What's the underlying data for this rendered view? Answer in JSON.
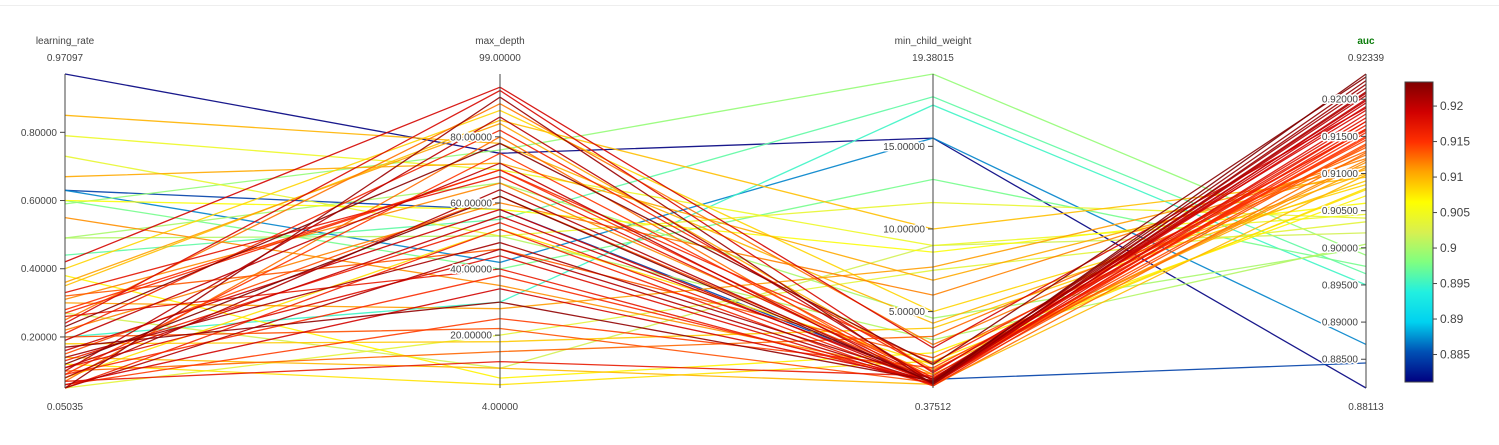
{
  "chart_data": {
    "type": "parallel_coordinates",
    "title": "",
    "color_by": "auc",
    "colorscale": [
      "#000080",
      "#0050b4",
      "#00d2f0",
      "#22f0e0",
      "#80ff80",
      "#d8f050",
      "#ffff00",
      "#ffa500",
      "#ff3000",
      "#d00000",
      "#800000"
    ],
    "dimensions": [
      {
        "name": "learning_rate",
        "min": 0.05035,
        "max": 0.97097,
        "range_min_label": "0.05035",
        "range_max_label": "0.97097",
        "ticks": [
          0.2,
          0.4,
          0.6,
          0.8
        ],
        "tick_labels": [
          "0.20000",
          "0.40000",
          "0.60000",
          "0.80000"
        ],
        "tick_side": "left",
        "highlight": false
      },
      {
        "name": "max_depth",
        "min": 4.0,
        "max": 99.0,
        "range_min_label": "4.00000",
        "range_max_label": "99.00000",
        "ticks": [
          20,
          40,
          60,
          80
        ],
        "tick_labels": [
          "20.00000",
          "40.00000",
          "60.00000",
          "80.00000"
        ],
        "tick_side": "left",
        "highlight": false
      },
      {
        "name": "min_child_weight",
        "min": 0.37512,
        "max": 19.38015,
        "range_min_label": "0.37512",
        "range_max_label": "19.38015",
        "ticks": [
          5,
          10,
          15
        ],
        "tick_labels": [
          "5.00000",
          "10.00000",
          "15.00000"
        ],
        "tick_side": "left",
        "highlight": false
      },
      {
        "name": "auc",
        "min": 0.88113,
        "max": 0.92339,
        "range_min_label": "0.88113",
        "range_max_label": "0.92339",
        "ticks": [
          0.885,
          0.89,
          0.895,
          0.9,
          0.905,
          0.91,
          0.915,
          0.92
        ],
        "tick_labels": [
          "0.88500",
          "0.89000",
          "0.89500",
          "0.90000",
          "0.90500",
          "0.91000",
          "0.91500",
          "0.92000"
        ],
        "tick_side": "left",
        "highlight": true
      }
    ],
    "trials": [
      [
        0.97097,
        75,
        15.5,
        0.88113
      ],
      [
        0.63,
        58,
        0.9,
        0.8845
      ],
      [
        0.63,
        42,
        15.5,
        0.887
      ],
      [
        0.2,
        30,
        17.5,
        0.895
      ],
      [
        0.6,
        40,
        13.0,
        0.8975
      ],
      [
        0.44,
        55,
        18.0,
        0.8965
      ],
      [
        0.59,
        76,
        19.38015,
        0.899
      ],
      [
        0.27,
        10,
        9.0,
        0.902
      ],
      [
        0.05035,
        20,
        7.5,
        0.9035
      ],
      [
        0.49,
        50,
        3.3,
        0.9005
      ],
      [
        0.49,
        66,
        4.6,
        0.9
      ],
      [
        0.73,
        50,
        11.6,
        0.904
      ],
      [
        0.79,
        70,
        9.0,
        0.9045
      ],
      [
        0.6,
        58,
        8.6,
        0.906
      ],
      [
        0.38,
        7,
        2.5,
        0.907
      ],
      [
        0.35,
        85,
        10.0,
        0.9095
      ],
      [
        0.85,
        78,
        4.3,
        0.91
      ],
      [
        0.67,
        72,
        6.9,
        0.9105
      ],
      [
        0.4,
        88,
        5.0,
        0.9085
      ],
      [
        0.3,
        28,
        7.7,
        0.911
      ],
      [
        0.12,
        5,
        2.0,
        0.9078
      ],
      [
        0.08,
        52,
        1.8,
        0.908
      ],
      [
        0.22,
        60,
        6.0,
        0.912
      ],
      [
        0.55,
        35,
        1.2,
        0.9115
      ],
      [
        0.18,
        18,
        4.0,
        0.909
      ],
      [
        0.25,
        90,
        3.0,
        0.9125
      ],
      [
        0.1,
        15,
        3.5,
        0.913
      ],
      [
        0.32,
        46,
        2.2,
        0.9135
      ],
      [
        0.15,
        62,
        0.9,
        0.914
      ],
      [
        0.06,
        25,
        1.6,
        0.9145
      ],
      [
        0.28,
        70,
        1.0,
        0.915
      ],
      [
        0.09,
        38,
        0.8,
        0.9155
      ],
      [
        0.21,
        82,
        1.4,
        0.916
      ],
      [
        0.13,
        54,
        0.7,
        0.9165
      ],
      [
        0.07,
        12,
        1.1,
        0.917
      ],
      [
        0.33,
        68,
        0.9,
        0.9175
      ],
      [
        0.11,
        44,
        0.6,
        0.918
      ],
      [
        0.24,
        94,
        1.3,
        0.9185
      ],
      [
        0.06,
        34,
        0.8,
        0.919
      ],
      [
        0.16,
        58,
        0.7,
        0.9195
      ],
      [
        0.19,
        72,
        0.6,
        0.92
      ],
      [
        0.1,
        86,
        0.8,
        0.9205
      ],
      [
        0.08,
        64,
        0.7,
        0.921
      ],
      [
        0.14,
        48,
        0.9,
        0.9215
      ],
      [
        0.05035,
        92,
        0.6,
        0.922
      ],
      [
        0.17,
        30,
        0.8,
        0.9225
      ],
      [
        0.23,
        78,
        1.8,
        0.923
      ],
      [
        0.12,
        62,
        0.7,
        0.92339
      ],
      [
        0.05035,
        52,
        0.5,
        0.916
      ],
      [
        0.26,
        40,
        0.6,
        0.917
      ],
      [
        0.09,
        75,
        1.0,
        0.9148
      ],
      [
        0.2,
        22,
        0.7,
        0.9138
      ],
      [
        0.07,
        80,
        0.5,
        0.9128
      ],
      [
        0.31,
        66,
        1.2,
        0.9118
      ],
      [
        0.36,
        84,
        1.5,
        0.9108
      ],
      [
        0.14,
        10,
        0.6,
        0.9098
      ],
      [
        0.42,
        95,
        2.8,
        0.9188
      ],
      [
        0.11,
        56,
        0.9,
        0.9198
      ],
      [
        0.05035,
        46,
        0.7,
        0.9208
      ],
      [
        0.27,
        70,
        1.9,
        0.9158
      ]
    ],
    "colorbar": {
      "ticks": [
        0.885,
        0.89,
        0.895,
        0.9,
        0.905,
        0.91,
        0.915,
        0.92
      ],
      "tick_labels": [
        "0.885",
        "0.89",
        "0.895",
        "0.9",
        "0.905",
        "0.91",
        "0.915",
        "0.92"
      ]
    }
  }
}
